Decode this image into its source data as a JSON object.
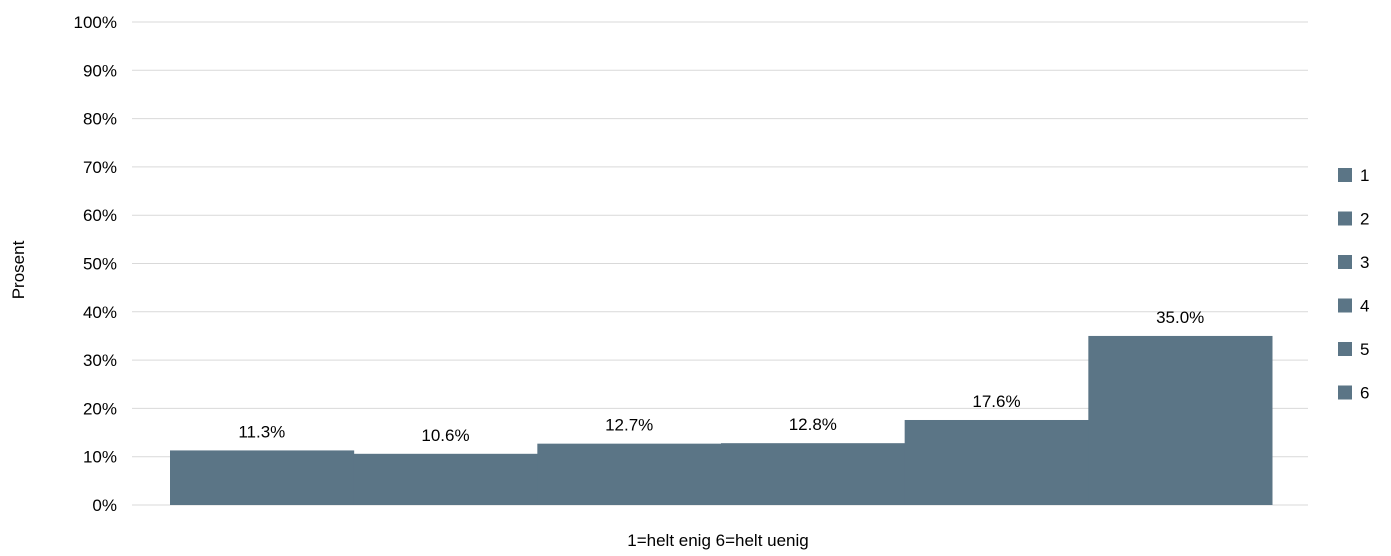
{
  "chart_data": {
    "type": "bar",
    "title": "",
    "xlabel": "1=helt enig 6=helt uenig",
    "ylabel": "Prosent",
    "categories": [
      "1",
      "2",
      "3",
      "4",
      "5",
      "6"
    ],
    "values": [
      11.3,
      10.6,
      12.7,
      12.8,
      17.6,
      35.0
    ],
    "value_labels": [
      "11.3%",
      "10.6%",
      "12.7%",
      "12.8%",
      "17.6%",
      "35.0%"
    ],
    "y_ticks": [
      "0%",
      "10%",
      "20%",
      "30%",
      "40%",
      "50%",
      "60%",
      "70%",
      "80%",
      "90%",
      "100%"
    ],
    "ylim": [
      0,
      100
    ],
    "grid": true,
    "legend_position": "right",
    "legend_entries": [
      "1",
      "2",
      "3",
      "4",
      "5",
      "6"
    ],
    "bar_color": "#5b7586",
    "gridline_color": "#d9d9d9"
  }
}
